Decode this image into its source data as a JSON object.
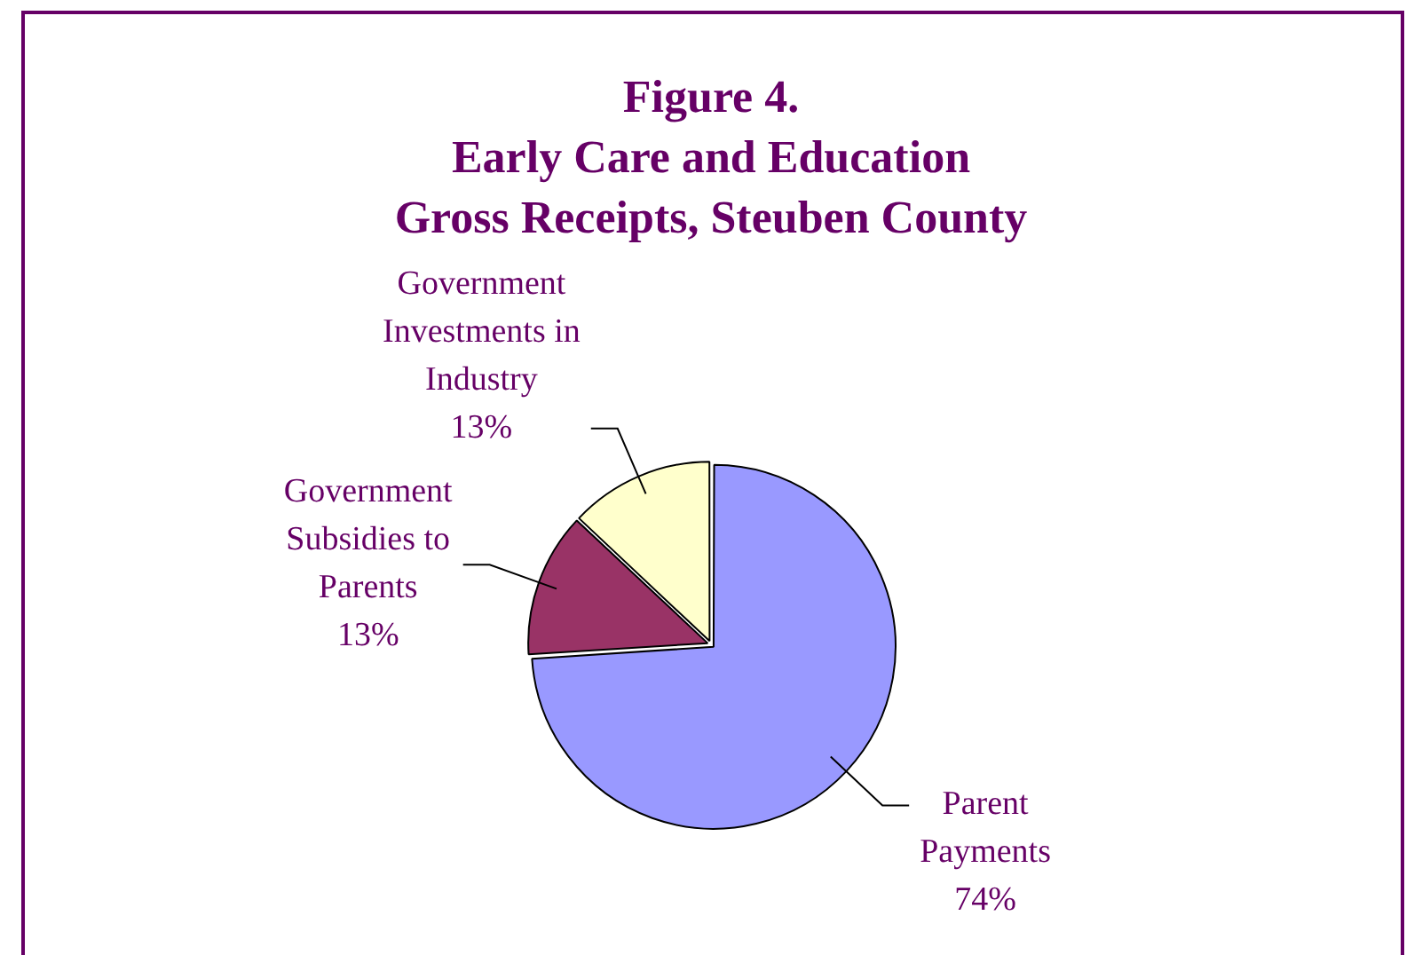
{
  "chart_data": {
    "type": "pie",
    "title": "Figure 4.\nEarly Care and Education\nGross Receipts, Steuben County",
    "categories": [
      "Parent Payments",
      "Government Subsidies to Parents",
      "Government Investments in Industry"
    ],
    "values": [
      74,
      13,
      13
    ],
    "colors": [
      "#9999ff",
      "#993366",
      "#ffffcc"
    ],
    "value_labels": [
      "74%",
      "13%",
      "13%"
    ],
    "legend": false
  }
}
